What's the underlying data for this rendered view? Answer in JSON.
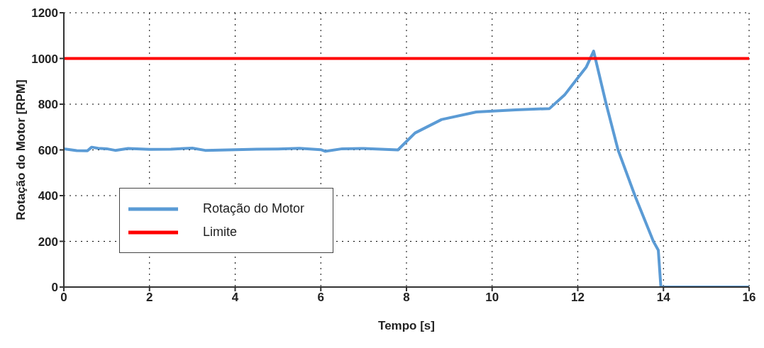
{
  "chart_data": {
    "type": "line",
    "xlabel": "Tempo [s]",
    "ylabel": "Rotação do Motor [RPM]",
    "xlim": [
      0,
      16
    ],
    "xticks": [
      0,
      2,
      4,
      6,
      8,
      10,
      12,
      14,
      16
    ],
    "ylim": [
      0,
      1200
    ],
    "yticks": [
      0,
      200,
      400,
      600,
      800,
      1000,
      1200
    ],
    "grid": true,
    "legend": "bottom left",
    "line_style": "solid",
    "series": [
      {
        "name": "Rotação do Motor",
        "color": "#5b9bd5",
        "x": [
          0,
          0.3,
          0.55,
          0.65,
          0.8,
          1.0,
          1.2,
          1.5,
          2,
          2.5,
          3,
          3.3,
          4,
          4.5,
          5,
          5.5,
          6,
          6.1,
          6.5,
          7,
          7.5,
          7.8,
          8.2,
          8.82,
          9.63,
          10.55,
          11.34,
          11.69,
          11.97,
          12.2,
          12.37,
          12.66,
          12.94,
          13.34,
          13.77,
          13.88,
          13.94,
          16
        ],
        "values": [
          605,
          597,
          596,
          612,
          607,
          605,
          598,
          606,
          602,
          603,
          608,
          598,
          601,
          603,
          604,
          607,
          601,
          594,
          605,
          606,
          602,
          600,
          674,
          733,
          766,
          775,
          781,
          840,
          908,
          963,
          1032,
          803,
          600,
          397,
          198,
          161,
          0,
          0
        ]
      },
      {
        "name": "Limite",
        "color": "#ff0000",
        "x": [
          0,
          16
        ],
        "values": [
          1000,
          1000
        ]
      }
    ]
  }
}
